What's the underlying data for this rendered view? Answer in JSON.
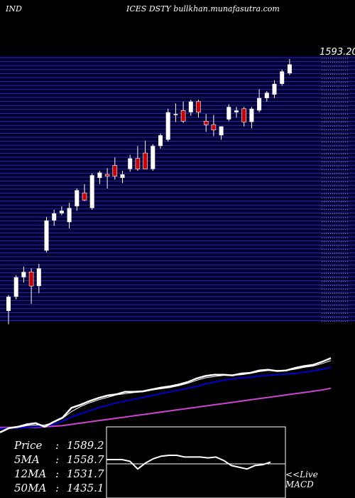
{
  "header": {
    "left_text": "IND",
    "right_text": "ICES DSTY bullkhan.munafasutra.com"
  },
  "last_price_label": "1593.20",
  "stats": [
    {
      "label": "Price",
      "value": "1589.2"
    },
    {
      "label": "5MA",
      "value": "1558.7"
    },
    {
      "label": "12MA",
      "value": "1531.7"
    },
    {
      "label": "50MA",
      "value": "1435.1"
    }
  ],
  "macd_link": {
    "line1": "<<Live",
    "line2": "MACD"
  },
  "colors": {
    "background": "#000000",
    "price_panel": "#000033",
    "grid": "#2a2aa0",
    "up_candle": "#ffffff",
    "down_candle": "#cc0000",
    "price_line": "#ffffff",
    "ma_short": "#ffffff",
    "ma_12": "#0000cc",
    "ma_50": "#cc44cc",
    "macd_line": "#ffffff"
  },
  "chart_data": {
    "type": "candlestick",
    "y_range": [
      1300,
      1600
    ],
    "candles": [
      {
        "o": 1312,
        "h": 1330,
        "l": 1297,
        "c": 1328
      },
      {
        "o": 1328,
        "h": 1352,
        "l": 1325,
        "c": 1350
      },
      {
        "o": 1350,
        "h": 1362,
        "l": 1344,
        "c": 1356
      },
      {
        "o": 1356,
        "h": 1360,
        "l": 1320,
        "c": 1340
      },
      {
        "o": 1340,
        "h": 1365,
        "l": 1332,
        "c": 1360
      },
      {
        "o": 1380,
        "h": 1418,
        "l": 1378,
        "c": 1414
      },
      {
        "o": 1414,
        "h": 1426,
        "l": 1408,
        "c": 1422
      },
      {
        "o": 1422,
        "h": 1430,
        "l": 1420,
        "c": 1425
      },
      {
        "o": 1412,
        "h": 1434,
        "l": 1405,
        "c": 1428
      },
      {
        "o": 1430,
        "h": 1450,
        "l": 1425,
        "c": 1448
      },
      {
        "o": 1445,
        "h": 1455,
        "l": 1436,
        "c": 1437
      },
      {
        "o": 1428,
        "h": 1467,
        "l": 1426,
        "c": 1465
      },
      {
        "o": 1462,
        "h": 1470,
        "l": 1455,
        "c": 1468
      },
      {
        "o": 1466,
        "h": 1473,
        "l": 1450,
        "c": 1464
      },
      {
        "o": 1476,
        "h": 1485,
        "l": 1460,
        "c": 1464
      },
      {
        "o": 1462,
        "h": 1470,
        "l": 1456,
        "c": 1466
      },
      {
        "o": 1472,
        "h": 1488,
        "l": 1469,
        "c": 1484
      },
      {
        "o": 1484,
        "h": 1498,
        "l": 1470,
        "c": 1472
      },
      {
        "o": 1490,
        "h": 1504,
        "l": 1472,
        "c": 1472
      },
      {
        "o": 1472,
        "h": 1500,
        "l": 1470,
        "c": 1498
      },
      {
        "o": 1498,
        "h": 1512,
        "l": 1495,
        "c": 1510
      },
      {
        "o": 1505,
        "h": 1540,
        "l": 1503,
        "c": 1536
      },
      {
        "o": 1534,
        "h": 1546,
        "l": 1525,
        "c": 1534
      },
      {
        "o": 1538,
        "h": 1548,
        "l": 1524,
        "c": 1526
      },
      {
        "o": 1536,
        "h": 1550,
        "l": 1532,
        "c": 1548
      },
      {
        "o": 1548,
        "h": 1550,
        "l": 1530,
        "c": 1536
      },
      {
        "o": 1526,
        "h": 1534,
        "l": 1514,
        "c": 1522
      },
      {
        "o": 1522,
        "h": 1533,
        "l": 1509,
        "c": 1516
      },
      {
        "o": 1510,
        "h": 1520,
        "l": 1505,
        "c": 1520
      },
      {
        "o": 1528,
        "h": 1545,
        "l": 1526,
        "c": 1542
      },
      {
        "o": 1536,
        "h": 1542,
        "l": 1530,
        "c": 1538
      },
      {
        "o": 1540,
        "h": 1542,
        "l": 1520,
        "c": 1525
      },
      {
        "o": 1525,
        "h": 1542,
        "l": 1518,
        "c": 1540
      },
      {
        "o": 1538,
        "h": 1562,
        "l": 1536,
        "c": 1552
      },
      {
        "o": 1552,
        "h": 1560,
        "l": 1548,
        "c": 1558
      },
      {
        "o": 1556,
        "h": 1572,
        "l": 1552,
        "c": 1568
      },
      {
        "o": 1568,
        "h": 1584,
        "l": 1566,
        "c": 1582
      },
      {
        "o": 1580,
        "h": 1596,
        "l": 1578,
        "c": 1590
      }
    ],
    "ma_panel": {
      "price_line": [
        1300,
        1307,
        1309,
        1313,
        1315,
        1309,
        1317,
        1324,
        1340,
        1345,
        1351,
        1356,
        1360,
        1362,
        1366,
        1366,
        1367,
        1370,
        1373,
        1375,
        1378,
        1382,
        1388,
        1392,
        1394,
        1394,
        1393,
        1396,
        1397,
        1401,
        1402,
        1400,
        1401,
        1405,
        1408,
        1410,
        1415,
        1421
      ],
      "ma5": [
        1300,
        1306,
        1308,
        1311,
        1312,
        1312,
        1316,
        1323,
        1334,
        1342,
        1348,
        1353,
        1357,
        1361,
        1363,
        1365,
        1366,
        1369,
        1371,
        1373,
        1376,
        1380,
        1385,
        1389,
        1391,
        1393,
        1393,
        1394,
        1396,
        1399,
        1401,
        1401,
        1401,
        1403,
        1406,
        1408,
        1412,
        1417
      ],
      "ma12": [
        1306,
        1307,
        1307,
        1308,
        1309,
        1310,
        1313,
        1318,
        1325,
        1330,
        1335,
        1340,
        1344,
        1348,
        1351,
        1354,
        1357,
        1360,
        1363,
        1366,
        1369,
        1372,
        1375,
        1379,
        1382,
        1385,
        1387,
        1389,
        1390,
        1392,
        1393,
        1394,
        1395,
        1396,
        1398,
        1400,
        1403,
        1406
      ],
      "ma50": [
        1308,
        1308,
        1308,
        1308,
        1308,
        1309,
        1310,
        1311,
        1313,
        1315,
        1317,
        1319,
        1321,
        1323,
        1325,
        1327,
        1329,
        1331,
        1333,
        1335,
        1337,
        1339,
        1341,
        1343,
        1345,
        1347,
        1349,
        1351,
        1353,
        1355,
        1357,
        1359,
        1361,
        1363,
        1365,
        1367,
        1369,
        1372
      ]
    },
    "macd": [
      0.5,
      0.5,
      0.5,
      0.3,
      -0.6,
      0.1,
      0.6,
      0.9,
      1.0,
      1.0,
      0.8,
      0.8,
      0.8,
      0.7,
      0.8,
      0.4,
      -0.2,
      -0.4,
      -0.6,
      -0.2,
      -0.1,
      0.2
    ]
  }
}
